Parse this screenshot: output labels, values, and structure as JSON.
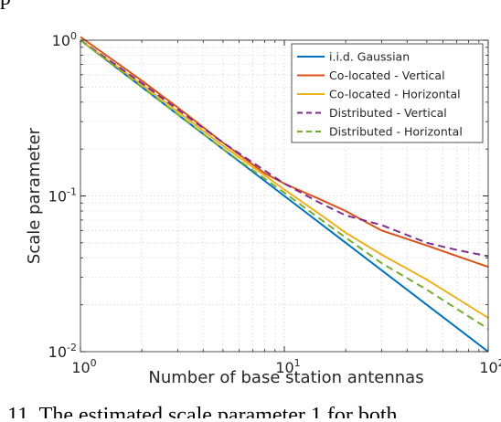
{
  "caption_fragment": "11. The estimated scale parameter  1  for both",
  "top_fragment": "p",
  "chart_data": {
    "type": "line",
    "title": "",
    "xlabel": "Number of base station antennas",
    "ylabel": "Scale parameter",
    "xscale": "log",
    "yscale": "log",
    "xlim": [
      1,
      100
    ],
    "ylim": [
      0.01,
      1
    ],
    "xticks": [
      {
        "value": 1,
        "base": "10",
        "exp": "0"
      },
      {
        "value": 10,
        "base": "10",
        "exp": "1"
      },
      {
        "value": 100,
        "base": "10",
        "exp": "2"
      }
    ],
    "yticks": [
      {
        "value": 0.01,
        "base": "10",
        "exp": "-2"
      },
      {
        "value": 0.1,
        "base": "10",
        "exp": "-1"
      },
      {
        "value": 1,
        "base": "10",
        "exp": "0"
      }
    ],
    "grid": "dotted",
    "legend_position": "top-right",
    "series": [
      {
        "name": "i.i.d. Gaussian",
        "color": "#0072BD",
        "dash": "solid",
        "x": [
          1,
          2,
          5,
          10,
          20,
          50,
          100
        ],
        "y": [
          1.0,
          0.5,
          0.2,
          0.1,
          0.05,
          0.02,
          0.01
        ]
      },
      {
        "name": "Co-located - Vertical",
        "color": "#D95319",
        "dash": "solid",
        "x": [
          1,
          2,
          3,
          5,
          8,
          10,
          15,
          20,
          30,
          50,
          100
        ],
        "y": [
          1.05,
          0.55,
          0.37,
          0.22,
          0.14,
          0.12,
          0.095,
          0.08,
          0.06,
          0.048,
          0.035
        ]
      },
      {
        "name": "Co-located - Horizontal",
        "color": "#EDB120",
        "dash": "solid",
        "x": [
          1,
          2,
          5,
          10,
          15,
          20,
          30,
          50,
          100
        ],
        "y": [
          1.0,
          0.52,
          0.21,
          0.11,
          0.076,
          0.058,
          0.042,
          0.029,
          0.0165
        ]
      },
      {
        "name": "Distributed - Vertical",
        "color": "#7E2F8E",
        "dash": "dashed",
        "x": [
          1,
          2,
          3,
          5,
          10,
          15,
          20,
          30,
          50,
          70,
          100
        ],
        "y": [
          1.0,
          0.53,
          0.36,
          0.22,
          0.12,
          0.09,
          0.075,
          0.065,
          0.05,
          0.045,
          0.041
        ]
      },
      {
        "name": "Distributed - Horizontal",
        "color": "#77AC30",
        "dash": "dashed",
        "x": [
          1,
          2,
          5,
          10,
          15,
          20,
          30,
          50,
          100
        ],
        "y": [
          1.0,
          0.5,
          0.2,
          0.105,
          0.071,
          0.054,
          0.037,
          0.025,
          0.014
        ]
      }
    ]
  }
}
